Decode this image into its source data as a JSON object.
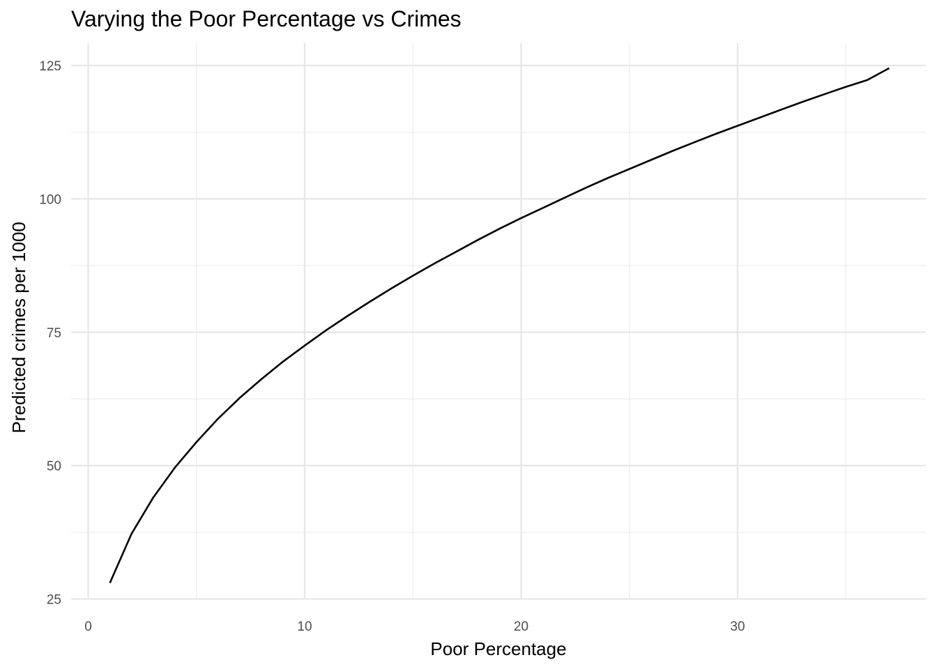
{
  "chart_data": {
    "type": "line",
    "title": "Varying the Poor Percentage vs Crimes",
    "xlabel": "Poor Percentage",
    "ylabel": "Predicted crimes per 1000",
    "xlim": [
      0,
      37
    ],
    "ylim": [
      25,
      125
    ],
    "x_ticks": [
      0,
      10,
      20,
      30
    ],
    "y_ticks": [
      25,
      50,
      75,
      100,
      125
    ],
    "x_minor": [
      5,
      15,
      25,
      35
    ],
    "y_minor": [
      37.5,
      62.5,
      87.5,
      112.5
    ],
    "grid": true,
    "legend": "none",
    "series": [
      {
        "x": [
          1,
          2,
          3,
          4,
          5,
          6,
          7,
          8,
          9,
          10,
          11,
          12,
          13,
          14,
          15,
          16,
          17,
          18,
          19,
          20,
          21,
          22,
          23,
          24,
          25,
          26,
          27,
          28,
          29,
          30,
          31,
          32,
          33,
          34,
          35,
          36,
          37
        ],
        "y": [
          28.0,
          37.2,
          44.0,
          49.6,
          54.4,
          58.8,
          62.7,
          66.2,
          69.5,
          72.5,
          75.4,
          78.1,
          80.7,
          83.2,
          85.6,
          87.9,
          90.1,
          92.3,
          94.4,
          96.4,
          98.3,
          100.2,
          102.1,
          103.9,
          105.6,
          107.3,
          109.0,
          110.6,
          112.2,
          113.7,
          115.2,
          116.7,
          118.2,
          119.6,
          121.0,
          122.3,
          124.5
        ]
      }
    ]
  }
}
